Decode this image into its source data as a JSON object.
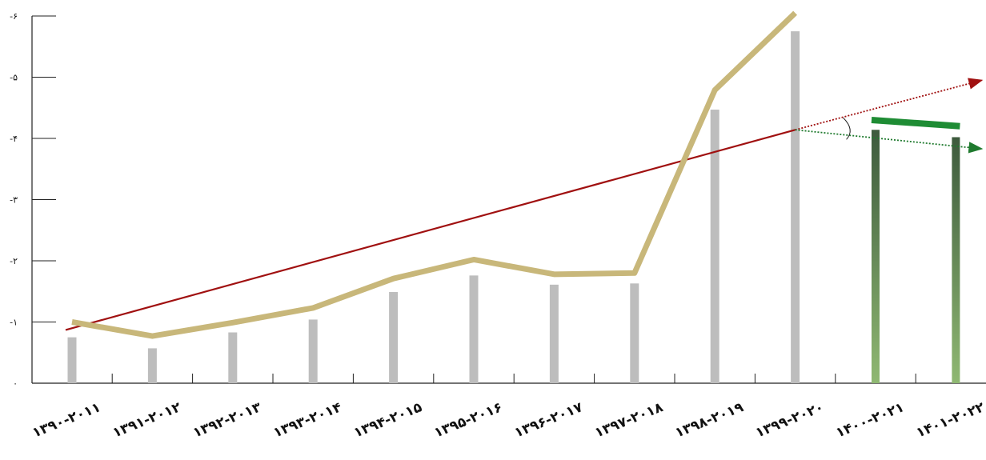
{
  "chart_data": {
    "type": "bar",
    "categories": [
      "۱۳۹۰-۲۰۱۱",
      "۱۳۹۱-۲۰۱۲",
      "۱۳۹۲-۲۰۱۳",
      "۱۳۹۳-۲۰۱۴",
      "۱۳۹۴-۲۰۱۵",
      "۱۳۹۵-۲۰۱۶",
      "۱۳۹۶-۲۰۱۷",
      "۱۳۹۷-۲۰۱۸",
      "۱۳۹۸-۲۰۱۹",
      "۱۳۹۹-۲۰۲۰",
      "۱۴۰۰-۲۰۲۱",
      "۱۴۰۱-۲۰۲۲"
    ],
    "ylim": [
      0,
      6
    ],
    "yticks": [
      0,
      1,
      2,
      3,
      4,
      5,
      6
    ],
    "ytick_labels": [
      "۰",
      "-۱",
      "-۲",
      "-۳",
      "-۴",
      "-۵",
      "-۶"
    ],
    "grid": false,
    "series": [
      {
        "kind": "bar",
        "color": "#bdbdbd",
        "values": [
          0.75,
          0.57,
          0.83,
          1.04,
          1.49,
          1.76,
          1.61,
          1.63,
          4.47,
          5.75,
          null,
          null
        ]
      },
      {
        "kind": "bar-gradient",
        "color_top": "#3d5a3d",
        "color_bottom": "#8fb872",
        "values": [
          null,
          null,
          null,
          null,
          null,
          null,
          null,
          null,
          null,
          null,
          4.14,
          4.02
        ]
      },
      {
        "kind": "line",
        "color": "#c8b77a",
        "values": [
          1.0,
          0.77,
          0.99,
          1.23,
          1.71,
          2.02,
          1.78,
          1.8,
          4.79,
          6.05,
          null,
          null
        ]
      }
    ],
    "trend_line": {
      "color": "#a01010",
      "from_category": 0,
      "from_value": 0.87,
      "to_category": 9,
      "to_value": 4.14
    },
    "projections": [
      {
        "color": "#a01010",
        "from_category": 9,
        "from_value": 4.14,
        "to_category": 11.4,
        "to_value": 4.95
      },
      {
        "color": "#1f7a2e",
        "from_category": 9,
        "from_value": 4.14,
        "to_category": 11.4,
        "to_value": 3.83
      }
    ],
    "highlight_segment": {
      "color": "#1e8c34",
      "from_category": 9.95,
      "from_value": 4.3,
      "to_category": 11.05,
      "to_value": 4.2
    }
  }
}
